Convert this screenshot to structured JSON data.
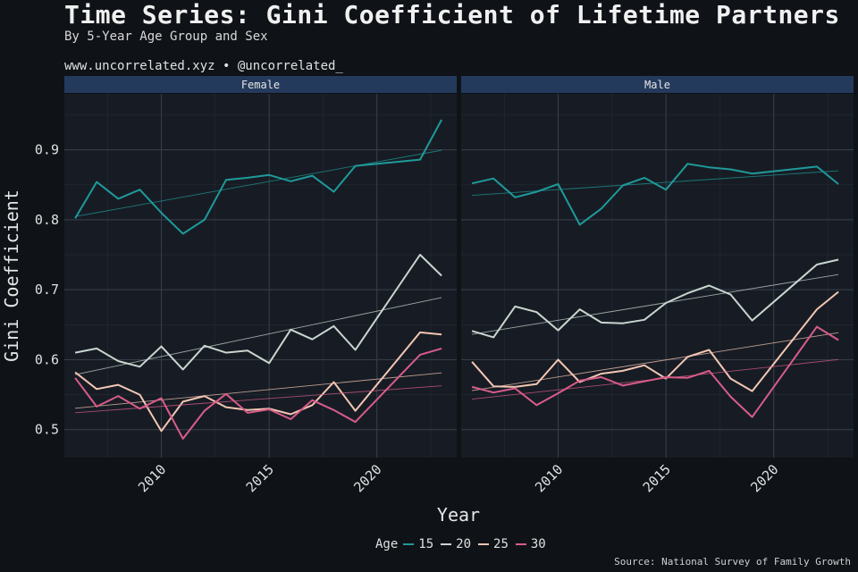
{
  "header": {
    "title": "Time Series: Gini Coefficient of Lifetime Partners",
    "subtitle": "By 5-Year Age Group and Sex",
    "credit": "www.uncorrelated.xyz • @uncorrelated_"
  },
  "footer": {
    "source": "Source: National Survey of Family Growth"
  },
  "chart_data": {
    "type": "line",
    "xlabel": "Year",
    "ylabel": "Gini Coefficient",
    "xlim": [
      2005.5,
      2023.7
    ],
    "ylim": [
      0.46,
      0.98
    ],
    "xticks": [
      2010,
      2015,
      2020
    ],
    "yticks": [
      0.5,
      0.6,
      0.7,
      0.8,
      0.9
    ],
    "ytick_labels": [
      "0.5",
      "0.6",
      "0.7",
      "0.8",
      "0.9"
    ],
    "grid": true,
    "legend": {
      "title": "Age",
      "placement": "bottom"
    },
    "colors": {
      "15": "#1f9a9a",
      "20": "#c9d6cf",
      "25": "#f4c6b4",
      "30": "#d85c8a"
    },
    "trend_lines": "linear fit per series (thin)",
    "facets": [
      {
        "label": "Female",
        "x": [
          2006,
          2007,
          2008,
          2009,
          2010,
          2011,
          2012,
          2013,
          2014,
          2015,
          2016,
          2017,
          2018,
          2019,
          2022,
          2023
        ],
        "series": [
          {
            "name": "15",
            "values": [
              0.802,
              0.854,
              0.83,
              0.843,
              0.81,
              0.78,
              0.8,
              0.857,
              0.86,
              0.864,
              0.855,
              0.863,
              0.84,
              0.877,
              0.886,
              0.943
            ]
          },
          {
            "name": "20",
            "values": [
              0.61,
              0.616,
              0.598,
              0.59,
              0.619,
              0.586,
              0.62,
              0.61,
              0.613,
              0.595,
              0.643,
              0.629,
              0.648,
              0.614,
              0.75,
              0.72
            ]
          },
          {
            "name": "25",
            "values": [
              0.582,
              0.558,
              0.564,
              0.55,
              0.498,
              0.54,
              0.548,
              0.532,
              0.528,
              0.53,
              0.522,
              0.535,
              0.568,
              0.527,
              0.639,
              0.636
            ]
          },
          {
            "name": "30",
            "values": [
              0.574,
              0.533,
              0.548,
              0.53,
              0.545,
              0.487,
              0.527,
              0.551,
              0.524,
              0.529,
              0.515,
              0.542,
              0.528,
              0.511,
              0.607,
              0.616
            ]
          }
        ]
      },
      {
        "label": "Male",
        "x": [
          2006,
          2007,
          2008,
          2009,
          2010,
          2011,
          2012,
          2013,
          2014,
          2015,
          2016,
          2017,
          2018,
          2019,
          2022,
          2023
        ],
        "series": [
          {
            "name": "15",
            "values": [
              0.852,
              0.859,
              0.832,
              0.84,
              0.851,
              0.793,
              0.816,
              0.849,
              0.86,
              0.843,
              0.88,
              0.875,
              0.872,
              0.866,
              0.876,
              0.851
            ]
          },
          {
            "name": "20",
            "values": [
              0.641,
              0.632,
              0.676,
              0.668,
              0.642,
              0.672,
              0.653,
              0.652,
              0.657,
              0.681,
              0.695,
              0.706,
              0.693,
              0.656,
              0.736,
              0.743
            ]
          },
          {
            "name": "25",
            "values": [
              0.597,
              0.562,
              0.561,
              0.565,
              0.6,
              0.568,
              0.58,
              0.584,
              0.592,
              0.573,
              0.604,
              0.614,
              0.573,
              0.555,
              0.672,
              0.697
            ]
          },
          {
            "name": "30",
            "values": [
              0.561,
              0.553,
              0.559,
              0.535,
              0.552,
              0.57,
              0.575,
              0.563,
              0.569,
              0.575,
              0.574,
              0.584,
              0.547,
              0.518,
              0.647,
              0.628
            ]
          }
        ]
      }
    ]
  }
}
